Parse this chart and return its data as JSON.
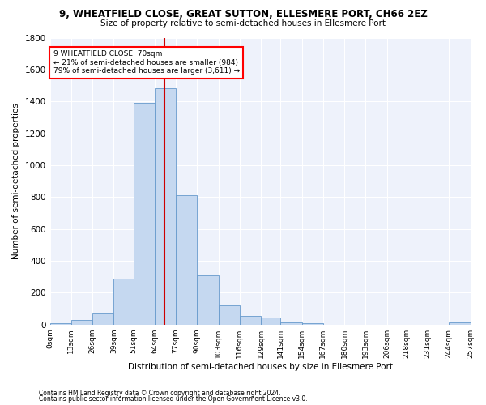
{
  "title1": "9, WHEATFIELD CLOSE, GREAT SUTTON, ELLESMERE PORT, CH66 2EZ",
  "title2": "Size of property relative to semi-detached houses in Ellesmere Port",
  "xlabel": "Distribution of semi-detached houses by size in Ellesmere Port",
  "ylabel": "Number of semi-detached properties",
  "property_size": 70,
  "annotation_title": "9 WHEATFIELD CLOSE: 70sqm",
  "annotation_line1": "← 21% of semi-detached houses are smaller (984)",
  "annotation_line2": "79% of semi-detached houses are larger (3,611) →",
  "bar_color": "#c5d8f0",
  "bar_edge_color": "#6699cc",
  "vline_color": "#cc0000",
  "background_color": "#eef2fb",
  "grid_color": "#ffffff",
  "bin_edges": [
    0,
    13,
    26,
    39,
    51,
    64,
    77,
    90,
    103,
    116,
    129,
    141,
    154,
    167,
    180,
    193,
    206,
    218,
    231,
    244,
    257
  ],
  "bin_counts": [
    10,
    30,
    70,
    290,
    1390,
    1480,
    810,
    310,
    120,
    55,
    45,
    15,
    8,
    0,
    0,
    0,
    0,
    0,
    0,
    15
  ],
  "tick_labels": [
    "0sqm",
    "13sqm",
    "26sqm",
    "39sqm",
    "51sqm",
    "64sqm",
    "77sqm",
    "90sqm",
    "103sqm",
    "116sqm",
    "129sqm",
    "141sqm",
    "154sqm",
    "167sqm",
    "180sqm",
    "193sqm",
    "206sqm",
    "218sqm",
    "231sqm",
    "244sqm",
    "257sqm"
  ],
  "ylim": [
    0,
    1800
  ],
  "yticks": [
    0,
    200,
    400,
    600,
    800,
    1000,
    1200,
    1400,
    1600,
    1800
  ],
  "footnote1": "Contains HM Land Registry data © Crown copyright and database right 2024.",
  "footnote2": "Contains public sector information licensed under the Open Government Licence v3.0."
}
